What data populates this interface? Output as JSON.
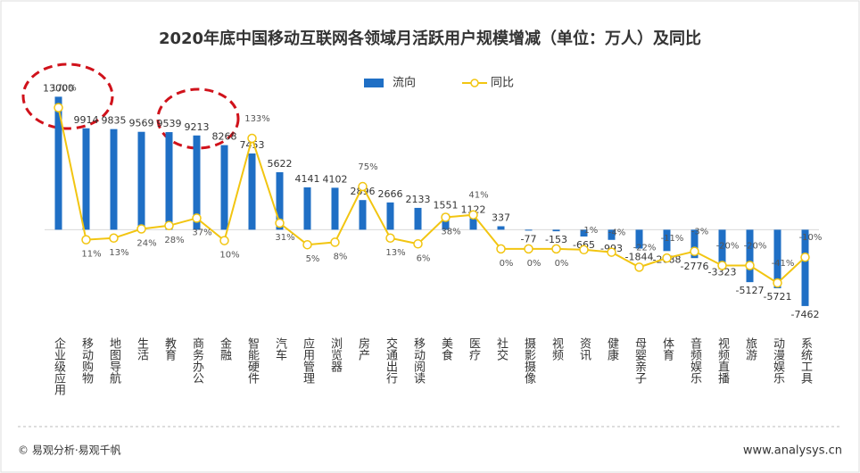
{
  "chart_data": {
    "type": "bar_line",
    "title": "2020年底中国移动互联网各领域月活跃用户规模增减（单位：万人）及同比",
    "categories": [
      "企业级应用",
      "移动购物",
      "地图导航",
      "生活",
      "教育",
      "商务办公",
      "金融",
      "智能硬件",
      "汽车",
      "应用管理",
      "浏览器",
      "房产",
      "交通出行",
      "移动阅读",
      "美食",
      "医疗",
      "社交",
      "摄影摄像",
      "视频",
      "资讯",
      "健康",
      "母婴亲子",
      "体育",
      "音频娱乐",
      "视频直播",
      "旅游",
      "动漫娱乐",
      "系统工具"
    ],
    "series": [
      {
        "name": "流向",
        "type": "bar",
        "color": "#1f6fc5",
        "values": [
          13000,
          9914,
          9835,
          9569,
          9539,
          9213,
          8268,
          7453,
          5622,
          4141,
          4102,
          2896,
          2666,
          2133,
          1551,
          1122,
          337,
          -77,
          -153,
          -665,
          -993,
          -1844,
          -2088,
          -2776,
          -3323,
          -5127,
          -5721,
          -7462
        ]
      },
      {
        "name": "同比",
        "type": "line",
        "color": "#f2c511",
        "axis": "y2",
        "values": [
          170,
          11,
          13,
          24,
          28,
          37,
          10,
          133,
          31,
          5,
          8,
          75,
          13,
          6,
          38,
          41,
          0,
          0,
          0,
          -1,
          -4,
          -22,
          -11,
          -3,
          -20,
          -20,
          -41,
          -10
        ],
        "value_labels": [
          "170%",
          "11%",
          "13%",
          "24%",
          "28%",
          "37%",
          "10%",
          "133%",
          "31%",
          "5%",
          "8%",
          "75%",
          "13%",
          "6%",
          "38%",
          "41%",
          "0%",
          "0%",
          "0%",
          "-1%",
          "-4%",
          "-22%",
          "-11%",
          "-3%",
          "-20%",
          "-20%",
          "-41%",
          "-10%"
        ]
      }
    ],
    "ylim": [
      -10000,
      16000
    ],
    "y2lim": [
      -100,
      220
    ],
    "legend": "top",
    "source": "© 易观分析·易观千帆",
    "website": "www.analysys.cn"
  }
}
